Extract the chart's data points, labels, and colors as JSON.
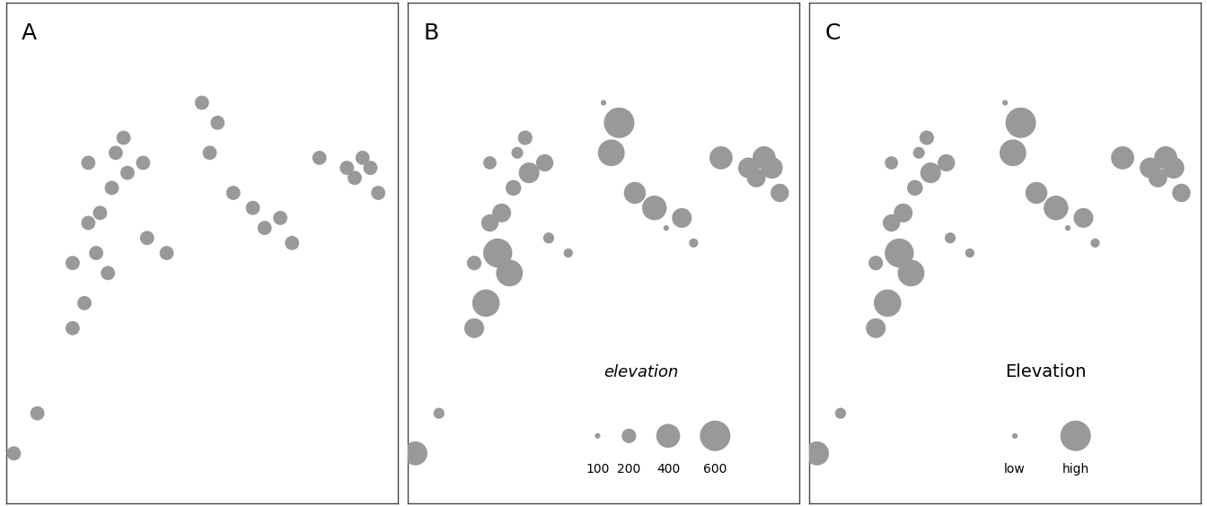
{
  "x": [
    0.02,
    0.08,
    0.17,
    0.2,
    0.17,
    0.23,
    0.26,
    0.21,
    0.24,
    0.27,
    0.21,
    0.28,
    0.31,
    0.3,
    0.35,
    0.36,
    0.41,
    0.5,
    0.54,
    0.52,
    0.58,
    0.63,
    0.66,
    0.7,
    0.73,
    0.8,
    0.87,
    0.89,
    0.91,
    0.93,
    0.95
  ],
  "y": [
    0.1,
    0.18,
    0.35,
    0.4,
    0.48,
    0.5,
    0.46,
    0.56,
    0.58,
    0.63,
    0.68,
    0.7,
    0.66,
    0.73,
    0.68,
    0.53,
    0.5,
    0.8,
    0.76,
    0.7,
    0.62,
    0.59,
    0.55,
    0.57,
    0.52,
    0.69,
    0.67,
    0.65,
    0.69,
    0.67,
    0.62
  ],
  "elevation": [
    400,
    150,
    300,
    500,
    200,
    550,
    480,
    250,
    280,
    220,
    180,
    160,
    320,
    200,
    250,
    150,
    130,
    100,
    600,
    480,
    350,
    420,
    100,
    300,
    130,
    380,
    320,
    280,
    380,
    340,
    270
  ],
  "dot_color": "#999999",
  "panel_bg": "#ffffff",
  "border_color": "#444444",
  "label_fontsize": 18,
  "panel_labels": [
    "A",
    "B",
    "C"
  ],
  "uniform_size": 130,
  "elev_min": 100,
  "elev_max": 600,
  "size_min": 20,
  "size_max": 600,
  "legend_title_B": "elevation",
  "legend_title_C": "Elevation",
  "legend_values_B": [
    100,
    200,
    400,
    600
  ],
  "legend_labels_B": [
    "100",
    "200",
    "400",
    "600"
  ],
  "legend_labels_C": [
    "low",
    "high"
  ],
  "legend_elev_C": [
    100,
    600
  ],
  "legend_title_fontsize_B": 13,
  "legend_title_fontsize_C": 14,
  "legend_text_fontsize": 10
}
